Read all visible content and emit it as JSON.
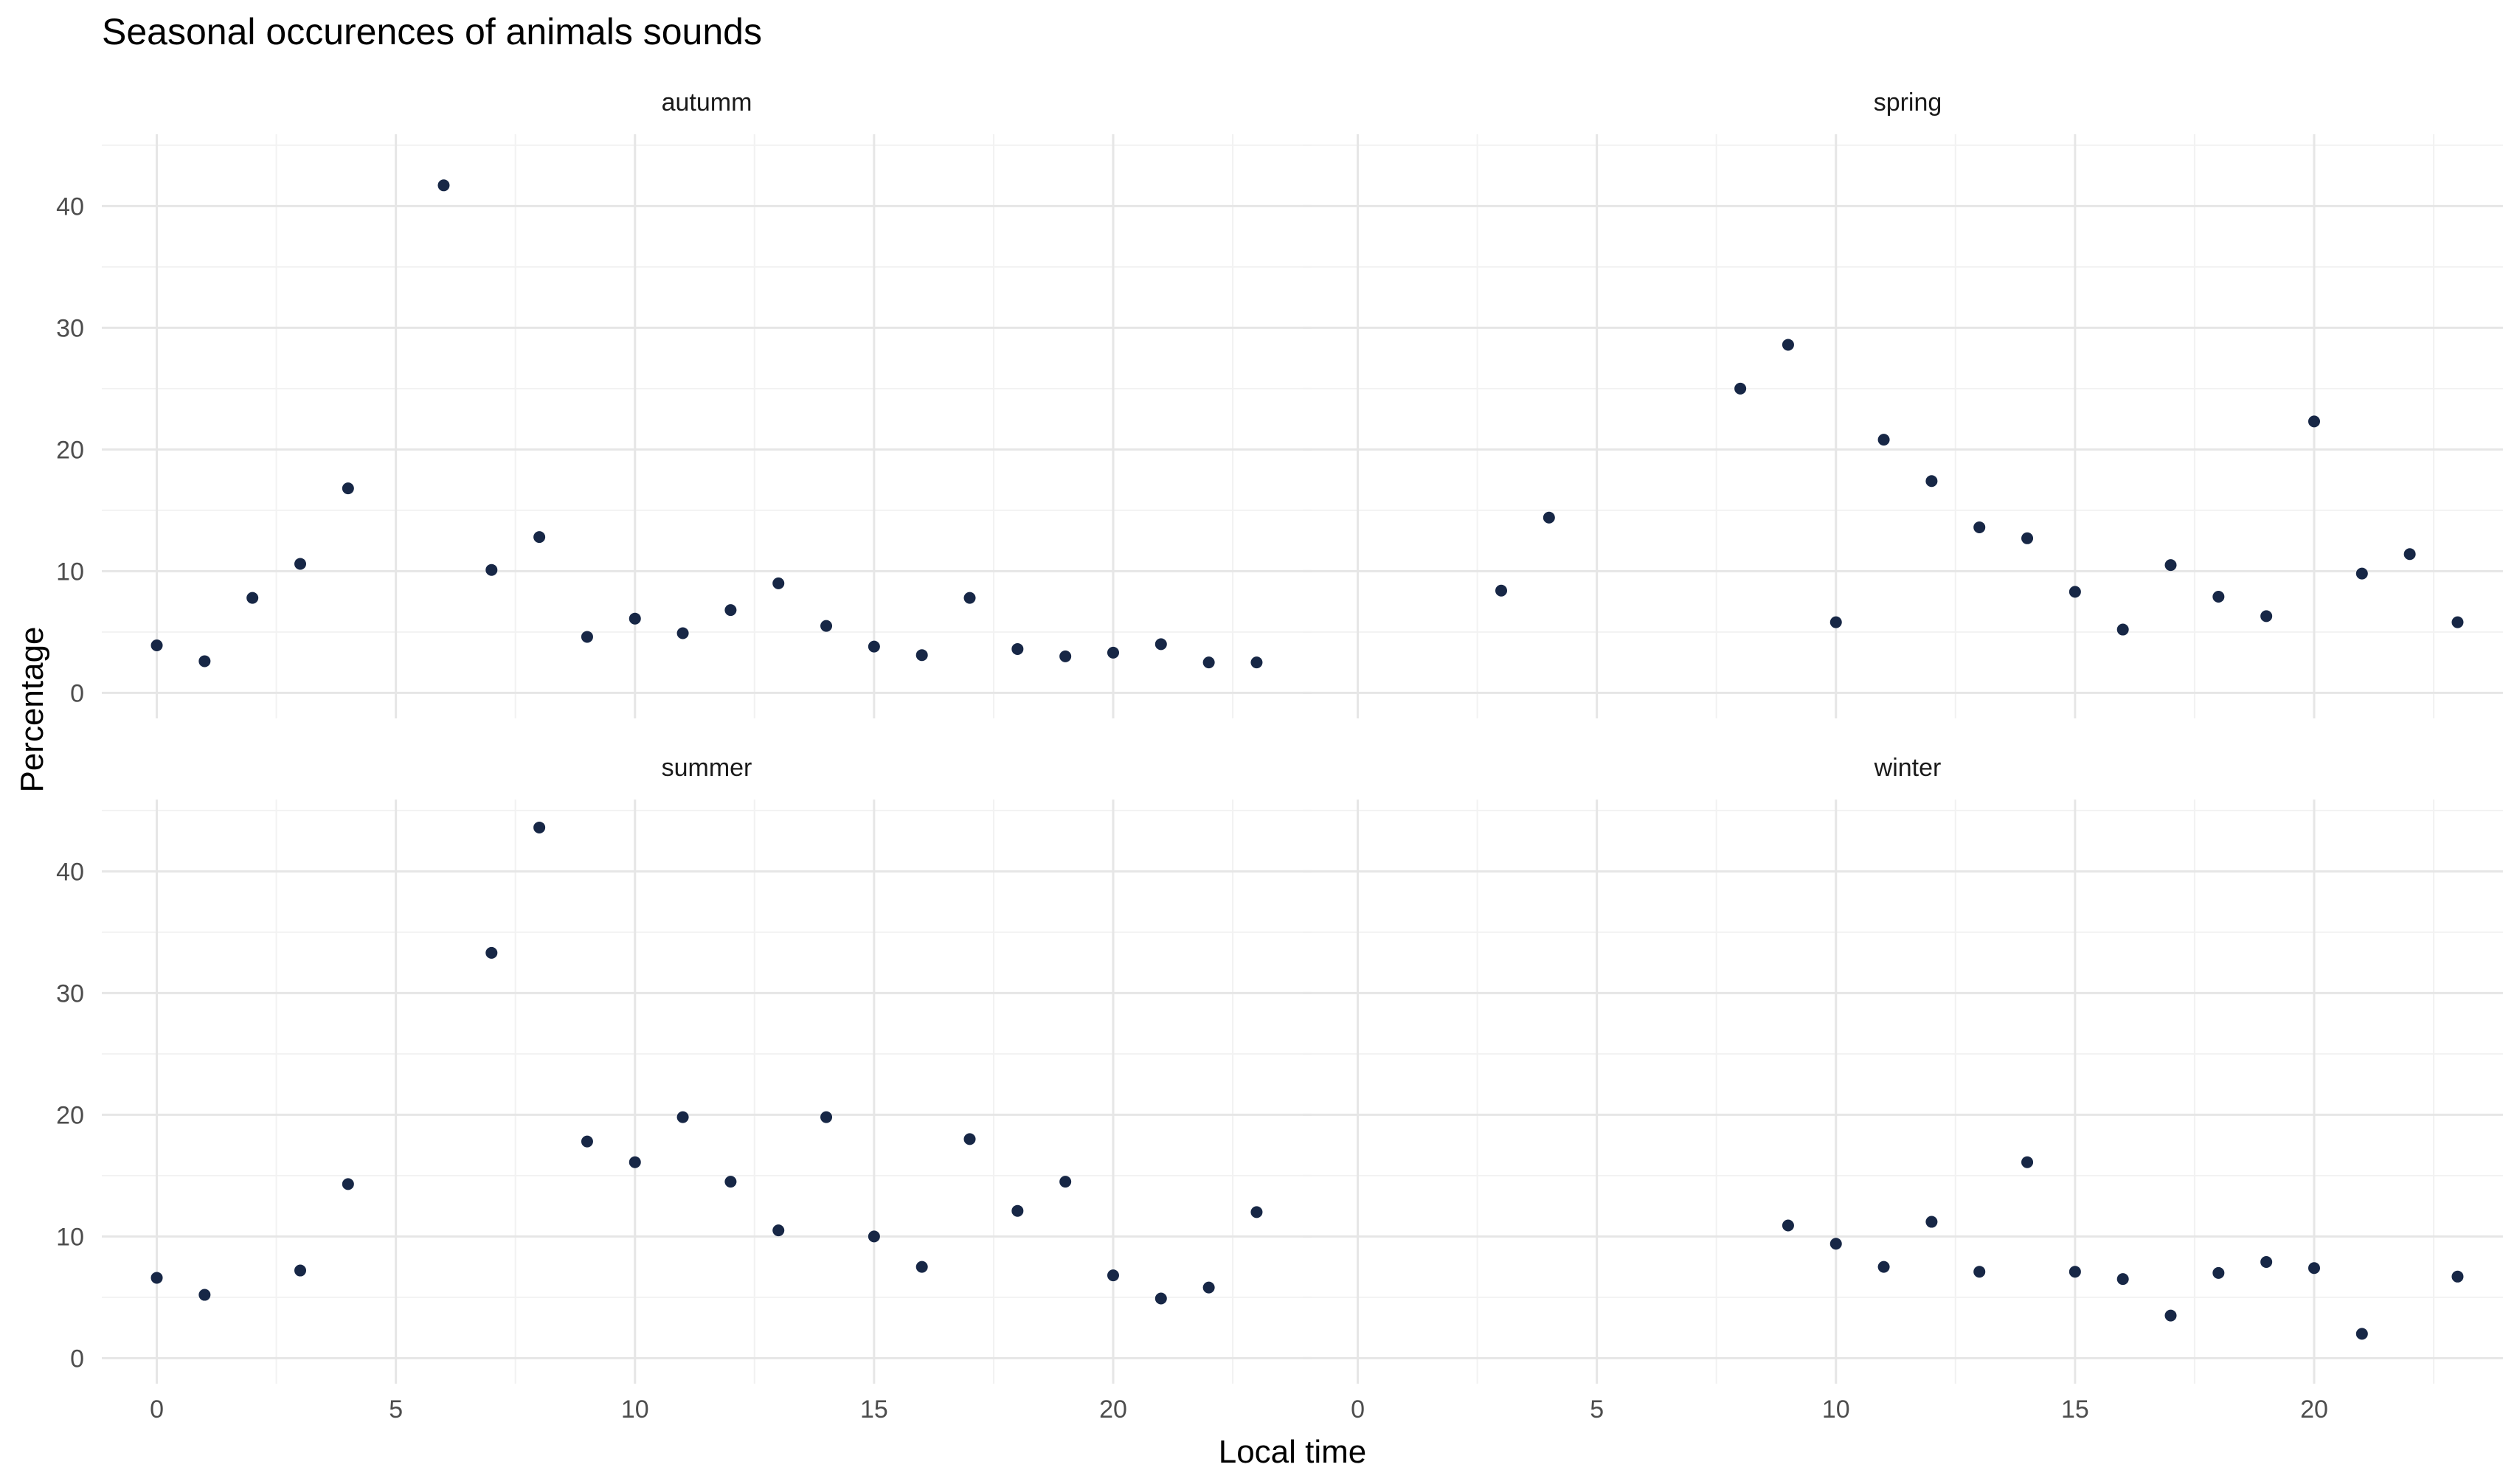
{
  "title": "Seasonal occurences of animals sounds",
  "xlabel": "Local time",
  "ylabel": "Percentage",
  "colors": {
    "point": "#172746",
    "grid_major": "#e6e6e6",
    "grid_minor": "#f2f2f2",
    "text": "#1a1a1a",
    "tick_text": "#4d4d4d"
  },
  "chart_data": {
    "type": "scatter",
    "facet_layout": "2x2",
    "xlim": [
      -1.15,
      24.15
    ],
    "ylim": [
      -2.1,
      45.9
    ],
    "x_ticks": [
      0,
      5,
      10,
      15,
      20
    ],
    "y_ticks": [
      0,
      10,
      20,
      30,
      40
    ],
    "grid": true,
    "series": [
      {
        "name": "autumm",
        "x": [
          0,
          1,
          2,
          3,
          4,
          6,
          7,
          8,
          9,
          10,
          11,
          12,
          13,
          14,
          15,
          16,
          17,
          18,
          19,
          20,
          21,
          22,
          23
        ],
        "y": [
          3.9,
          2.6,
          7.8,
          10.6,
          16.8,
          41.7,
          10.1,
          12.8,
          4.6,
          6.1,
          4.9,
          6.8,
          9.0,
          5.5,
          3.8,
          3.1,
          7.8,
          3.6,
          3.0,
          3.3,
          4.0,
          2.5,
          2.5
        ]
      },
      {
        "name": "spring",
        "x": [
          3,
          4,
          8,
          9,
          10,
          11,
          12,
          13,
          14,
          15,
          16,
          17,
          18,
          19,
          20,
          21,
          22,
          23
        ],
        "y": [
          8.4,
          14.4,
          25.0,
          28.6,
          5.8,
          20.8,
          17.4,
          13.6,
          12.7,
          8.3,
          5.2,
          10.5,
          7.9,
          6.3,
          22.3,
          9.8,
          11.4,
          5.8
        ]
      },
      {
        "name": "summer",
        "x": [
          0,
          1,
          3,
          4,
          7,
          8,
          9,
          10,
          11,
          12,
          13,
          14,
          15,
          16,
          17,
          18,
          19,
          20,
          21,
          22,
          23
        ],
        "y": [
          6.6,
          5.2,
          7.2,
          14.3,
          33.3,
          43.6,
          17.8,
          16.1,
          19.8,
          14.5,
          10.5,
          19.8,
          10.0,
          7.5,
          18.0,
          12.1,
          14.5,
          6.8,
          4.9,
          5.8,
          12.0
        ]
      },
      {
        "name": "winter",
        "x": [
          9,
          10,
          11,
          12,
          13,
          14,
          15,
          16,
          17,
          18,
          19,
          20,
          21,
          23
        ],
        "y": [
          10.9,
          9.4,
          7.5,
          11.2,
          7.1,
          16.1,
          7.1,
          6.5,
          3.5,
          7.0,
          7.9,
          7.4,
          2.0,
          6.7
        ]
      }
    ]
  }
}
